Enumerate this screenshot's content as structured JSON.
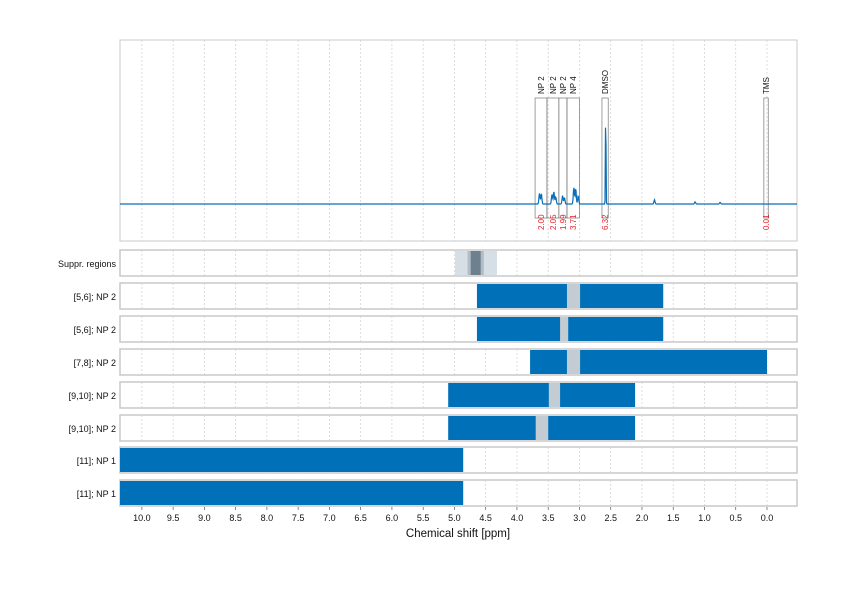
{
  "chart_data": {
    "type": "nmr-spectrum-with-range-bars",
    "xlabel": "Chemical shift [ppm]",
    "xlim": [
      10.35,
      -0.48
    ],
    "x_reversed": true,
    "grid": true,
    "ticks": [
      "10.0",
      "9.5",
      "9.0",
      "8.5",
      "8.0",
      "7.5",
      "7.0",
      "6.5",
      "6.0",
      "5.5",
      "5.0",
      "4.5",
      "4.0",
      "3.5",
      "3.0",
      "2.5",
      "2.0",
      "1.5",
      "1.0",
      "0.5",
      "0.0"
    ],
    "colors": {
      "spectrum": "#0a6eb8",
      "bar": "#0070b8",
      "gap": "#c3ccd3",
      "integral": "#e8202a",
      "suppr_light": "#d6dee6",
      "suppr_mid": "#b0bcc6",
      "suppr_dark": "#6e808d"
    },
    "spectrum": {
      "peaks": [
        {
          "ppm": 3.64,
          "height": 0.1
        },
        {
          "ppm": 3.61,
          "height": 0.1
        },
        {
          "ppm": 3.44,
          "height": 0.09
        },
        {
          "ppm": 3.41,
          "height": 0.12
        },
        {
          "ppm": 3.38,
          "height": 0.07
        },
        {
          "ppm": 3.27,
          "height": 0.08
        },
        {
          "ppm": 3.24,
          "height": 0.06
        },
        {
          "ppm": 3.09,
          "height": 0.16
        },
        {
          "ppm": 3.06,
          "height": 0.15
        },
        {
          "ppm": 3.02,
          "height": 0.08
        },
        {
          "ppm": 2.58,
          "height": 1.0
        },
        {
          "ppm": 1.8,
          "height": 0.04
        },
        {
          "ppm": 1.15,
          "height": 0.02
        },
        {
          "ppm": 0.75,
          "height": 0.015
        }
      ],
      "annotations": [
        {
          "label": "NP 2",
          "from": 3.71,
          "to": 3.52,
          "integral": "2.00"
        },
        {
          "label": "NP 2",
          "from": 3.52,
          "to": 3.33,
          "integral": "2.05"
        },
        {
          "label": "NP 2",
          "from": 3.33,
          "to": 3.2,
          "integral": "1.99"
        },
        {
          "label": "NP 4",
          "from": 3.2,
          "to": 3.0,
          "integral": "3.71"
        },
        {
          "label": "DMSO",
          "from": 2.64,
          "to": 2.54,
          "integral": "6.32"
        },
        {
          "label": "TMS",
          "from": 0.05,
          "to": -0.02,
          "integral": "0.01"
        }
      ]
    },
    "suppression": {
      "label": "Suppr. regions",
      "light": [
        4.99,
        4.32
      ],
      "mid": [
        4.79,
        4.53
      ],
      "dark": [
        4.74,
        4.58
      ]
    },
    "rows": [
      {
        "label": "[5,6]; NP 2",
        "from": 4.64,
        "to": 1.66,
        "gap": [
          3.2,
          2.99
        ]
      },
      {
        "label": "[5,6]; NP 2",
        "from": 4.64,
        "to": 1.66,
        "gap": [
          3.31,
          3.18
        ]
      },
      {
        "label": "[7,8]; NP 2",
        "from": 3.79,
        "to": 0.0,
        "gap": [
          3.2,
          2.99
        ]
      },
      {
        "label": "[9,10]; NP 2",
        "from": 5.1,
        "to": 2.11,
        "gap": [
          3.49,
          3.31
        ]
      },
      {
        "label": "[9,10]; NP 2",
        "from": 5.1,
        "to": 2.11,
        "gap": [
          3.7,
          3.5
        ]
      },
      {
        "label": "[11]; NP 1",
        "from": 10.35,
        "to": 4.86,
        "gap": null
      },
      {
        "label": "[11]; NP 1",
        "from": 10.35,
        "to": 4.86,
        "gap": null
      }
    ]
  }
}
